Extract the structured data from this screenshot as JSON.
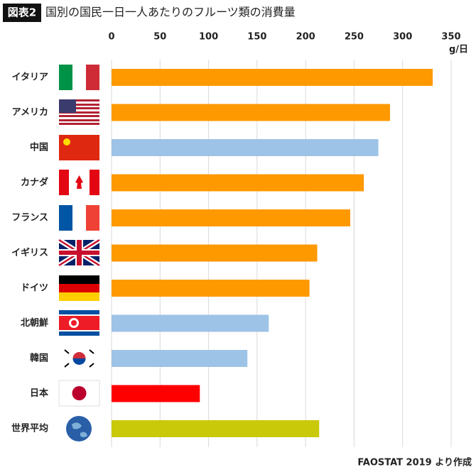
{
  "chart_data": {
    "type": "bar",
    "orientation": "horizontal",
    "title_tag": "図表2",
    "title": "国別の国民一日一人あたりのフルーツ類の消費量",
    "unit": "g/日",
    "source": "FAOSTAT 2019 より作成",
    "categories": [
      "イタリア",
      "アメリカ",
      "中国",
      "カナダ",
      "フランス",
      "イギリス",
      "ドイツ",
      "北朝鮮",
      "韓国",
      "日本",
      "世界平均"
    ],
    "values": [
      331,
      287,
      275,
      260,
      246,
      212,
      204,
      162,
      140,
      91,
      214
    ],
    "colors": [
      "#ff9900",
      "#ff9900",
      "#9dc3e6",
      "#ff9900",
      "#ff9900",
      "#ff9900",
      "#ff9900",
      "#9dc3e6",
      "#9dc3e6",
      "#ff0000",
      "#c9c90a"
    ],
    "xlim": [
      0,
      350
    ],
    "xticks": [
      0,
      50,
      100,
      150,
      200,
      250,
      300,
      350
    ],
    "grid": true
  }
}
